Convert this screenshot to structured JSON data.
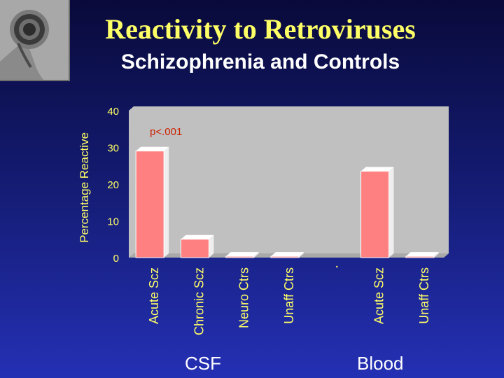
{
  "slide": {
    "title": "Reactivity to Retroviruses",
    "subtitle": "Schizophrenia and Controls"
  },
  "colors": {
    "bar": "#ff8080",
    "plot_background": "#c0c0c0",
    "annotation": "#cc2200",
    "title": "#ffff66"
  },
  "chart_data": {
    "type": "bar",
    "ylabel": "Percentage Reactive",
    "ylim": [
      0,
      40
    ],
    "yticks": [
      "0",
      "10",
      "20",
      "30",
      "40"
    ],
    "categories": [
      "Acute Scz",
      "Chronic Scz",
      "Neuro Ctrs",
      "Unaff Ctrs",
      "",
      "Acute Scz",
      "Unaff Ctrs"
    ],
    "values": [
      29,
      5,
      0,
      0,
      null,
      23.5,
      0
    ],
    "annotation": "p<.001",
    "groups": [
      "CSF",
      "Blood"
    ],
    "grid": false,
    "legend": "none"
  }
}
